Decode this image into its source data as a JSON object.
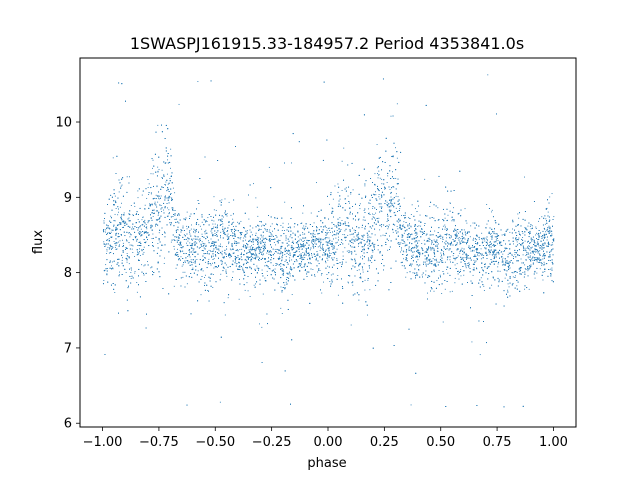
{
  "chart_data": {
    "type": "scatter",
    "title": "1SWASPJ161915.33-184957.2 Period 4353841.0s",
    "xlabel": "phase",
    "ylabel": "flux",
    "xlim": [
      -1.1,
      1.1
    ],
    "ylim": [
      5.95,
      10.85
    ],
    "x_ticks": [
      "−1.00",
      "−0.75",
      "−0.50",
      "−0.25",
      "0.00",
      "0.25",
      "0.50",
      "0.75",
      "1.00"
    ],
    "x_tick_values": [
      -1.0,
      -0.75,
      -0.5,
      -0.25,
      0.0,
      0.25,
      0.5,
      0.75,
      1.0
    ],
    "y_ticks": [
      "6",
      "7",
      "8",
      "9",
      "10"
    ],
    "y_tick_values": [
      6,
      7,
      8,
      9,
      10
    ],
    "grid": false,
    "point_color": "#1f77b4",
    "series": [
      {
        "x": [
          -0.98,
          -0.95,
          -0.92,
          -0.88,
          -0.85,
          -0.82,
          -0.78,
          -0.75,
          -0.72,
          -0.7,
          -0.68,
          -0.65,
          -0.6,
          -0.55,
          -0.5,
          -0.47,
          -0.45,
          -0.4,
          -0.35,
          -0.3,
          -0.25,
          -0.2,
          -0.15,
          -0.1,
          -0.05,
          0.02,
          0.05,
          0.08,
          0.12,
          0.15,
          0.18,
          0.22,
          0.25,
          0.28,
          0.3,
          0.32,
          0.35,
          0.4,
          0.45,
          0.5,
          0.53,
          0.55,
          0.6,
          0.65,
          0.7,
          0.75,
          0.8,
          0.85,
          0.9,
          0.95,
          0.98
        ],
        "y": [
          8.4,
          8.5,
          8.6,
          8.3,
          8.45,
          8.4,
          8.8,
          8.9,
          9.0,
          9.1,
          8.5,
          8.4,
          8.35,
          8.3,
          8.35,
          8.5,
          8.4,
          8.3,
          8.25,
          8.3,
          8.3,
          8.2,
          8.25,
          8.3,
          8.35,
          8.4,
          8.5,
          8.6,
          8.3,
          8.45,
          8.4,
          8.8,
          8.9,
          9.0,
          9.1,
          8.5,
          8.4,
          8.35,
          8.3,
          8.35,
          8.5,
          8.4,
          8.3,
          8.25,
          8.3,
          8.3,
          8.2,
          8.25,
          8.3,
          8.35,
          8.4
        ],
        "spread": [
          0.5,
          0.6,
          0.65,
          0.7,
          0.6,
          0.5,
          0.7,
          0.9,
          0.7,
          0.6,
          0.45,
          0.4,
          0.45,
          0.45,
          0.45,
          0.5,
          0.45,
          0.4,
          0.4,
          0.4,
          0.4,
          0.4,
          0.4,
          0.35,
          0.35,
          0.5,
          0.6,
          0.65,
          0.7,
          0.6,
          0.5,
          0.7,
          0.9,
          0.7,
          0.6,
          0.45,
          0.4,
          0.45,
          0.45,
          0.45,
          0.5,
          0.45,
          0.4,
          0.4,
          0.4,
          0.4,
          0.4,
          0.4,
          0.35,
          0.35,
          0.5
        ]
      }
    ]
  }
}
